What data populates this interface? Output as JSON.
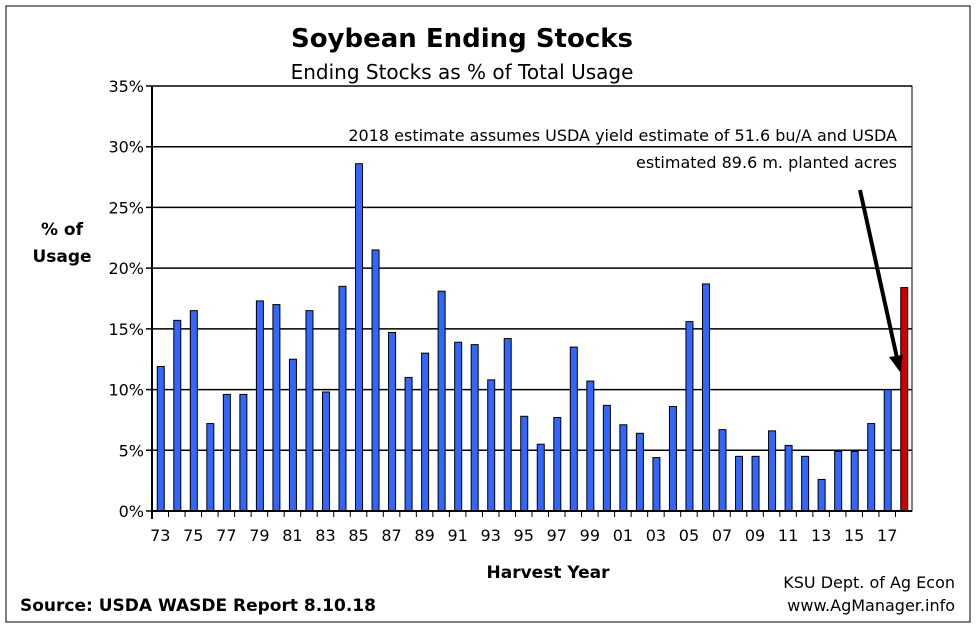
{
  "chart_data": {
    "type": "bar",
    "title": "Soybean Ending Stocks",
    "subtitle": "Ending Stocks as % of Total Usage",
    "xlabel": "Harvest Year",
    "ylabel": [
      "% of",
      "Usage"
    ],
    "ylim": [
      0,
      35
    ],
    "yticks": [
      "0%",
      "5%",
      "10%",
      "15%",
      "20%",
      "25%",
      "30%",
      "35%"
    ],
    "grid": true,
    "xtick_labels": [
      "73",
      "75",
      "77",
      "79",
      "81",
      "83",
      "85",
      "87",
      "89",
      "91",
      "93",
      "95",
      "97",
      "99",
      "01",
      "03",
      "05",
      "07",
      "09",
      "11",
      "13",
      "15",
      "17"
    ],
    "categories": [
      "1973",
      "1974",
      "1975",
      "1976",
      "1977",
      "1978",
      "1979",
      "1980",
      "1981",
      "1982",
      "1983",
      "1984",
      "1985",
      "1986",
      "1987",
      "1988",
      "1989",
      "1990",
      "1991",
      "1992",
      "1993",
      "1994",
      "1995",
      "1996",
      "1997",
      "1998",
      "1999",
      "2000",
      "2001",
      "2002",
      "2003",
      "2004",
      "2005",
      "2006",
      "2007",
      "2008",
      "2009",
      "2010",
      "2011",
      "2012",
      "2013",
      "2014",
      "2015",
      "2016",
      "2017",
      "2018"
    ],
    "values": [
      11.9,
      15.7,
      16.5,
      7.2,
      9.6,
      9.6,
      17.3,
      17.0,
      12.5,
      16.5,
      9.8,
      18.5,
      28.6,
      21.5,
      14.7,
      11.0,
      13.0,
      18.1,
      13.9,
      13.7,
      10.8,
      14.2,
      7.8,
      5.5,
      7.7,
      13.5,
      10.7,
      8.7,
      7.1,
      6.4,
      4.4,
      8.6,
      15.6,
      18.7,
      6.7,
      4.5,
      4.5,
      6.6,
      5.4,
      4.5,
      2.6,
      4.9,
      4.9,
      7.2,
      10.0,
      18.4
    ],
    "colors": {
      "historical": "#3366ff",
      "estimate": "#cc0000"
    },
    "highlighted_category": "2018",
    "annotation": [
      "2018 estimate assumes USDA yield estimate of 51.6 bu/A and USDA",
      "estimated 89.6 m. planted acres"
    ]
  },
  "footer": {
    "source": "Source:  USDA WASDE Report 8.10.18",
    "credit_line1": "KSU Dept. of Ag Econ",
    "credit_line2": "www.AgManager.info"
  }
}
